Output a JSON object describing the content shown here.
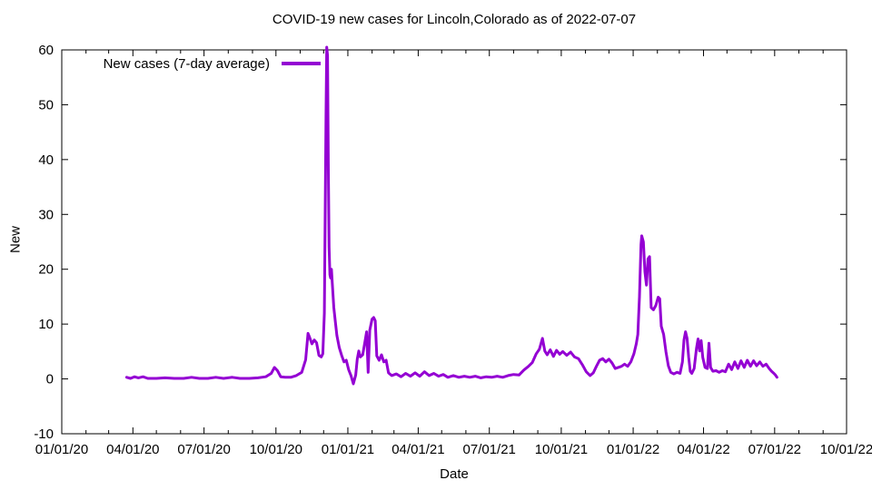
{
  "chart_data": {
    "type": "line",
    "title": "COVID-19 new cases for Lincoln,Colorado as of 2022-07-07",
    "xlabel": "Date",
    "ylabel": "New",
    "xlim": [
      "2020-01-01",
      "2022-10-01"
    ],
    "ylim": [
      -10,
      60
    ],
    "grid": false,
    "legend_position": "top-left-inside",
    "line_color": "#9400D3",
    "axis_color": "#000000",
    "background_color": "#ffffff",
    "x_ticks": [
      {
        "label": "01/01/20",
        "date": "2020-01-01"
      },
      {
        "label": "04/01/20",
        "date": "2020-04-01"
      },
      {
        "label": "07/01/20",
        "date": "2020-07-01"
      },
      {
        "label": "10/01/20",
        "date": "2020-10-01"
      },
      {
        "label": "01/01/21",
        "date": "2021-01-01"
      },
      {
        "label": "04/01/21",
        "date": "2021-04-01"
      },
      {
        "label": "07/01/21",
        "date": "2021-07-01"
      },
      {
        "label": "10/01/21",
        "date": "2021-10-01"
      },
      {
        "label": "01/01/22",
        "date": "2022-01-01"
      },
      {
        "label": "04/01/22",
        "date": "2022-04-01"
      },
      {
        "label": "07/01/22",
        "date": "2022-07-01"
      },
      {
        "label": "10/01/22",
        "date": "2022-10-01"
      }
    ],
    "y_ticks": [
      {
        "label": "-10",
        "value": -10
      },
      {
        "label": "0",
        "value": 0
      },
      {
        "label": "10",
        "value": 10
      },
      {
        "label": "20",
        "value": 20
      },
      {
        "label": "30",
        "value": 30
      },
      {
        "label": "40",
        "value": 40
      },
      {
        "label": "50",
        "value": 50
      },
      {
        "label": "60",
        "value": 60
      }
    ],
    "series": [
      {
        "name": "New cases (7-day average)",
        "points": [
          [
            "2020-03-24",
            0.3
          ],
          [
            "2020-03-29",
            0.1
          ],
          [
            "2020-04-03",
            0.4
          ],
          [
            "2020-04-08",
            0.2
          ],
          [
            "2020-04-14",
            0.4
          ],
          [
            "2020-04-20",
            0.1
          ],
          [
            "2020-05-01",
            0.1
          ],
          [
            "2020-05-12",
            0.2
          ],
          [
            "2020-05-24",
            0.1
          ],
          [
            "2020-06-05",
            0.1
          ],
          [
            "2020-06-15",
            0.3
          ],
          [
            "2020-06-25",
            0.1
          ],
          [
            "2020-07-06",
            0.1
          ],
          [
            "2020-07-16",
            0.3
          ],
          [
            "2020-07-26",
            0.1
          ],
          [
            "2020-08-06",
            0.3
          ],
          [
            "2020-08-16",
            0.1
          ],
          [
            "2020-08-28",
            0.1
          ],
          [
            "2020-09-08",
            0.2
          ],
          [
            "2020-09-18",
            0.4
          ],
          [
            "2020-09-25",
            1.0
          ],
          [
            "2020-09-29",
            2.1
          ],
          [
            "2020-10-03",
            1.5
          ],
          [
            "2020-10-07",
            0.4
          ],
          [
            "2020-10-13",
            0.3
          ],
          [
            "2020-10-20",
            0.3
          ],
          [
            "2020-10-27",
            0.6
          ],
          [
            "2020-11-03",
            1.2
          ],
          [
            "2020-11-08",
            3.5
          ],
          [
            "2020-11-11",
            8.3
          ],
          [
            "2020-11-13",
            7.6
          ],
          [
            "2020-11-16",
            6.4
          ],
          [
            "2020-11-19",
            7.1
          ],
          [
            "2020-11-22",
            6.6
          ],
          [
            "2020-11-25",
            4.3
          ],
          [
            "2020-11-28",
            4.0
          ],
          [
            "2020-11-30",
            4.6
          ],
          [
            "2020-12-02",
            12.0
          ],
          [
            "2020-12-04",
            48.0
          ],
          [
            "2020-12-05",
            60.5
          ],
          [
            "2020-12-06",
            59.0
          ],
          [
            "2020-12-07",
            38.0
          ],
          [
            "2020-12-08",
            24.0
          ],
          [
            "2020-12-09",
            19.0
          ],
          [
            "2020-12-10",
            18.4
          ],
          [
            "2020-12-11",
            20.0
          ],
          [
            "2020-12-12",
            17.5
          ],
          [
            "2020-12-14",
            13.0
          ],
          [
            "2020-12-16",
            10.4
          ],
          [
            "2020-12-18",
            7.9
          ],
          [
            "2020-12-21",
            5.7
          ],
          [
            "2020-12-24",
            4.3
          ],
          [
            "2020-12-27",
            3.1
          ],
          [
            "2020-12-30",
            3.4
          ],
          [
            "2021-01-02",
            1.7
          ],
          [
            "2021-01-05",
            0.6
          ],
          [
            "2021-01-08",
            -0.9
          ],
          [
            "2021-01-11",
            0.7
          ],
          [
            "2021-01-13",
            3.6
          ],
          [
            "2021-01-15",
            5.1
          ],
          [
            "2021-01-17",
            4.0
          ],
          [
            "2021-01-20",
            4.4
          ],
          [
            "2021-01-23",
            6.9
          ],
          [
            "2021-01-25",
            8.6
          ],
          [
            "2021-01-27",
            1.2
          ],
          [
            "2021-01-29",
            8.9
          ],
          [
            "2021-02-01",
            10.9
          ],
          [
            "2021-02-03",
            11.2
          ],
          [
            "2021-02-05",
            10.6
          ],
          [
            "2021-02-07",
            4.2
          ],
          [
            "2021-02-10",
            3.4
          ],
          [
            "2021-02-13",
            4.4
          ],
          [
            "2021-02-16",
            3.1
          ],
          [
            "2021-02-19",
            3.4
          ],
          [
            "2021-02-22",
            1.1
          ],
          [
            "2021-02-26",
            0.6
          ],
          [
            "2021-03-04",
            0.9
          ],
          [
            "2021-03-10",
            0.4
          ],
          [
            "2021-03-16",
            1.0
          ],
          [
            "2021-03-22",
            0.5
          ],
          [
            "2021-03-28",
            1.1
          ],
          [
            "2021-04-03",
            0.5
          ],
          [
            "2021-04-09",
            1.3
          ],
          [
            "2021-04-15",
            0.6
          ],
          [
            "2021-04-21",
            1.0
          ],
          [
            "2021-04-27",
            0.5
          ],
          [
            "2021-05-03",
            0.8
          ],
          [
            "2021-05-09",
            0.3
          ],
          [
            "2021-05-16",
            0.6
          ],
          [
            "2021-05-23",
            0.3
          ],
          [
            "2021-05-30",
            0.5
          ],
          [
            "2021-06-06",
            0.3
          ],
          [
            "2021-06-13",
            0.5
          ],
          [
            "2021-06-20",
            0.2
          ],
          [
            "2021-06-27",
            0.4
          ],
          [
            "2021-07-04",
            0.3
          ],
          [
            "2021-07-11",
            0.5
          ],
          [
            "2021-07-18",
            0.3
          ],
          [
            "2021-07-25",
            0.6
          ],
          [
            "2021-08-01",
            0.8
          ],
          [
            "2021-08-08",
            0.7
          ],
          [
            "2021-08-14",
            1.6
          ],
          [
            "2021-08-20",
            2.3
          ],
          [
            "2021-08-25",
            3.0
          ],
          [
            "2021-08-30",
            4.6
          ],
          [
            "2021-09-03",
            5.4
          ],
          [
            "2021-09-07",
            7.4
          ],
          [
            "2021-09-10",
            5.1
          ],
          [
            "2021-09-13",
            4.4
          ],
          [
            "2021-09-17",
            5.3
          ],
          [
            "2021-09-21",
            4.1
          ],
          [
            "2021-09-25",
            5.2
          ],
          [
            "2021-09-29",
            4.5
          ],
          [
            "2021-10-03",
            5.0
          ],
          [
            "2021-10-08",
            4.3
          ],
          [
            "2021-10-13",
            4.9
          ],
          [
            "2021-10-18",
            4.0
          ],
          [
            "2021-10-23",
            3.7
          ],
          [
            "2021-10-28",
            2.6
          ],
          [
            "2021-11-02",
            1.3
          ],
          [
            "2021-11-07",
            0.6
          ],
          [
            "2021-11-11",
            1.1
          ],
          [
            "2021-11-15",
            2.3
          ],
          [
            "2021-11-19",
            3.4
          ],
          [
            "2021-11-23",
            3.7
          ],
          [
            "2021-11-27",
            3.1
          ],
          [
            "2021-12-01",
            3.6
          ],
          [
            "2021-12-05",
            2.9
          ],
          [
            "2021-12-09",
            1.9
          ],
          [
            "2021-12-13",
            2.1
          ],
          [
            "2021-12-17",
            2.3
          ],
          [
            "2021-12-21",
            2.7
          ],
          [
            "2021-12-25",
            2.3
          ],
          [
            "2021-12-29",
            3.1
          ],
          [
            "2022-01-02",
            4.6
          ],
          [
            "2022-01-05",
            6.4
          ],
          [
            "2022-01-07",
            8.1
          ],
          [
            "2022-01-09",
            15.0
          ],
          [
            "2022-01-11",
            24.5
          ],
          [
            "2022-01-12",
            26.1
          ],
          [
            "2022-01-14",
            25.0
          ],
          [
            "2022-01-16",
            19.5
          ],
          [
            "2022-01-18",
            17.1
          ],
          [
            "2022-01-20",
            21.9
          ],
          [
            "2022-01-22",
            22.3
          ],
          [
            "2022-01-24",
            13.0
          ],
          [
            "2022-01-27",
            12.6
          ],
          [
            "2022-01-30",
            13.4
          ],
          [
            "2022-02-02",
            14.9
          ],
          [
            "2022-02-04",
            14.6
          ],
          [
            "2022-02-06",
            9.6
          ],
          [
            "2022-02-09",
            8.1
          ],
          [
            "2022-02-12",
            4.9
          ],
          [
            "2022-02-15",
            2.4
          ],
          [
            "2022-02-18",
            1.2
          ],
          [
            "2022-02-22",
            0.9
          ],
          [
            "2022-02-26",
            1.2
          ],
          [
            "2022-03-02",
            1.0
          ],
          [
            "2022-03-05",
            3.1
          ],
          [
            "2022-03-07",
            7.1
          ],
          [
            "2022-03-09",
            8.6
          ],
          [
            "2022-03-11",
            7.4
          ],
          [
            "2022-03-13",
            3.9
          ],
          [
            "2022-03-15",
            1.4
          ],
          [
            "2022-03-17",
            1.0
          ],
          [
            "2022-03-20",
            1.9
          ],
          [
            "2022-03-23",
            5.6
          ],
          [
            "2022-03-25",
            7.3
          ],
          [
            "2022-03-27",
            5.1
          ],
          [
            "2022-03-29",
            7.0
          ],
          [
            "2022-03-31",
            3.9
          ],
          [
            "2022-04-03",
            2.1
          ],
          [
            "2022-04-06",
            1.9
          ],
          [
            "2022-04-08",
            6.5
          ],
          [
            "2022-04-10",
            2.1
          ],
          [
            "2022-04-13",
            1.4
          ],
          [
            "2022-04-17",
            1.5
          ],
          [
            "2022-04-21",
            1.2
          ],
          [
            "2022-04-25",
            1.5
          ],
          [
            "2022-04-29",
            1.3
          ],
          [
            "2022-05-03",
            2.7
          ],
          [
            "2022-05-07",
            1.7
          ],
          [
            "2022-05-11",
            3.1
          ],
          [
            "2022-05-15",
            1.9
          ],
          [
            "2022-05-19",
            3.3
          ],
          [
            "2022-05-23",
            2.1
          ],
          [
            "2022-05-27",
            3.4
          ],
          [
            "2022-05-31",
            2.3
          ],
          [
            "2022-06-04",
            3.3
          ],
          [
            "2022-06-08",
            2.4
          ],
          [
            "2022-06-12",
            3.1
          ],
          [
            "2022-06-16",
            2.3
          ],
          [
            "2022-06-20",
            2.7
          ],
          [
            "2022-06-24",
            1.9
          ],
          [
            "2022-06-27",
            1.4
          ],
          [
            "2022-06-30",
            1.0
          ],
          [
            "2022-07-02",
            0.7
          ],
          [
            "2022-07-04",
            0.3
          ]
        ]
      }
    ]
  }
}
